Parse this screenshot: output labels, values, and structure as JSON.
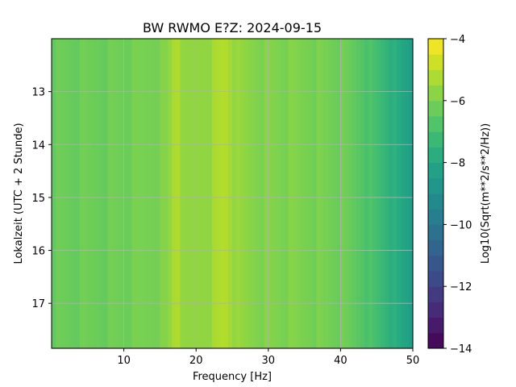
{
  "chart_data": {
    "type": "heatmap",
    "title": "BW RWMO  E?Z: 2024-09-15",
    "xlabel": "Frequency [Hz]",
    "ylabel": "Lokalzeit (UTC + 2 Stunde)",
    "colorbar_label": "Log10(Sqrt(m**2/s**2/Hz))",
    "xlim": [
      0,
      50
    ],
    "ylim": [
      12.0,
      17.85
    ],
    "y_inverted": true,
    "clim": [
      -14,
      -4
    ],
    "colormap": "viridis",
    "grid": true,
    "x_ticks": [
      10,
      20,
      30,
      40,
      50
    ],
    "x_tick_labels": [
      "10",
      "20",
      "30",
      "40",
      "50"
    ],
    "y_ticks": [
      13,
      14,
      15,
      16,
      17
    ],
    "y_tick_labels": [
      "13",
      "14",
      "15",
      "16",
      "17"
    ],
    "colorbar_ticks": [
      -4,
      -6,
      -8,
      -10,
      -12,
      -14
    ],
    "colorbar_tick_labels": [
      "−4",
      "−6",
      "−8",
      "−10",
      "−12",
      "−14"
    ],
    "base_level": -6.2,
    "frequency_profile": [
      {
        "x": 0,
        "value": -6.3
      },
      {
        "x": 10,
        "value": -6.2
      },
      {
        "x": 16,
        "value": -5.9
      },
      {
        "x": 17.3,
        "value": -5.0
      },
      {
        "x": 18.5,
        "value": -5.8
      },
      {
        "x": 22,
        "value": -5.5
      },
      {
        "x": 24,
        "value": -5.1
      },
      {
        "x": 26,
        "value": -5.7
      },
      {
        "x": 30,
        "value": -5.9
      },
      {
        "x": 36,
        "value": -6.0
      },
      {
        "x": 40,
        "value": -6.2
      },
      {
        "x": 43,
        "value": -6.6
      },
      {
        "x": 46,
        "value": -7.3
      },
      {
        "x": 48,
        "value": -7.9
      },
      {
        "x": 50,
        "value": -8.4
      }
    ],
    "bright_bands": [
      {
        "time": 12.1,
        "value": -5.3
      },
      {
        "time": 13.55,
        "value": -5.3
      },
      {
        "time": 14.45,
        "value": -5.0
      },
      {
        "time": 14.55,
        "value": -4.7
      },
      {
        "time": 15.15,
        "value": -5.1
      },
      {
        "time": 15.6,
        "value": -5.5
      },
      {
        "time": 16.15,
        "value": -5.6
      },
      {
        "time": 16.7,
        "value": -5.0
      },
      {
        "time": 17.52,
        "value": -5.0
      },
      {
        "time": 17.7,
        "value": -4.9
      },
      {
        "time": 17.8,
        "value": -4.8
      }
    ]
  }
}
